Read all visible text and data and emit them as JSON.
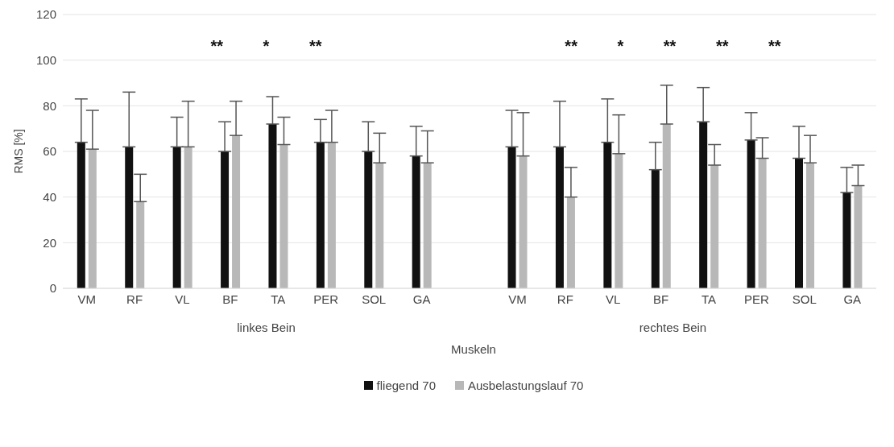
{
  "chart_data": {
    "type": "bar",
    "xlabel": "Muskeln",
    "ylabel": "RMS [%]",
    "categories": [
      "VM",
      "RF",
      "VL",
      "BF",
      "TA",
      "PER",
      "SOL",
      "GA",
      null,
      "VM",
      "RF",
      "VL",
      "BF",
      "TA",
      "PER",
      "SOL",
      "GA"
    ],
    "series": [
      {
        "name": "fliegend 70",
        "color": "#111111",
        "values": [
          64,
          62,
          62,
          60,
          72,
          64,
          60,
          58,
          null,
          62,
          62,
          64,
          52,
          73,
          65,
          57,
          42
        ],
        "errors": [
          [
            64,
            83
          ],
          [
            62,
            86
          ],
          [
            62,
            75
          ],
          [
            60,
            73
          ],
          [
            72,
            84
          ],
          [
            64,
            74
          ],
          [
            60,
            73
          ],
          [
            58,
            71
          ],
          null,
          [
            62,
            78
          ],
          [
            62,
            82
          ],
          [
            64,
            83
          ],
          [
            52,
            64
          ],
          [
            73,
            88
          ],
          [
            65,
            77
          ],
          [
            57,
            71
          ],
          [
            42,
            53
          ]
        ]
      },
      {
        "name": "Ausbelastungslauf 70",
        "color": "#b8b8b8",
        "values": [
          61,
          38,
          62,
          67,
          63,
          64,
          55,
          55,
          null,
          58,
          40,
          59,
          72,
          54,
          57,
          55,
          45
        ],
        "errors": [
          [
            61,
            78
          ],
          [
            38,
            50
          ],
          [
            62,
            82
          ],
          [
            67,
            82
          ],
          [
            63,
            75
          ],
          [
            64,
            78
          ],
          [
            55,
            68
          ],
          [
            55,
            69
          ],
          null,
          [
            58,
            77
          ],
          [
            40,
            53
          ],
          [
            59,
            76
          ],
          [
            72,
            89
          ],
          [
            54,
            63
          ],
          [
            57,
            66
          ],
          [
            55,
            67
          ],
          [
            45,
            54
          ]
        ]
      }
    ],
    "ylim": [
      0,
      120
    ],
    "yticks": [
      0,
      20,
      40,
      60,
      80,
      100,
      120
    ],
    "grid": "y",
    "legend": "bottom",
    "annotations": [
      "** * **",
      "** * ** ** **",
      "linkes Bein",
      "rechtes Bein"
    ]
  }
}
